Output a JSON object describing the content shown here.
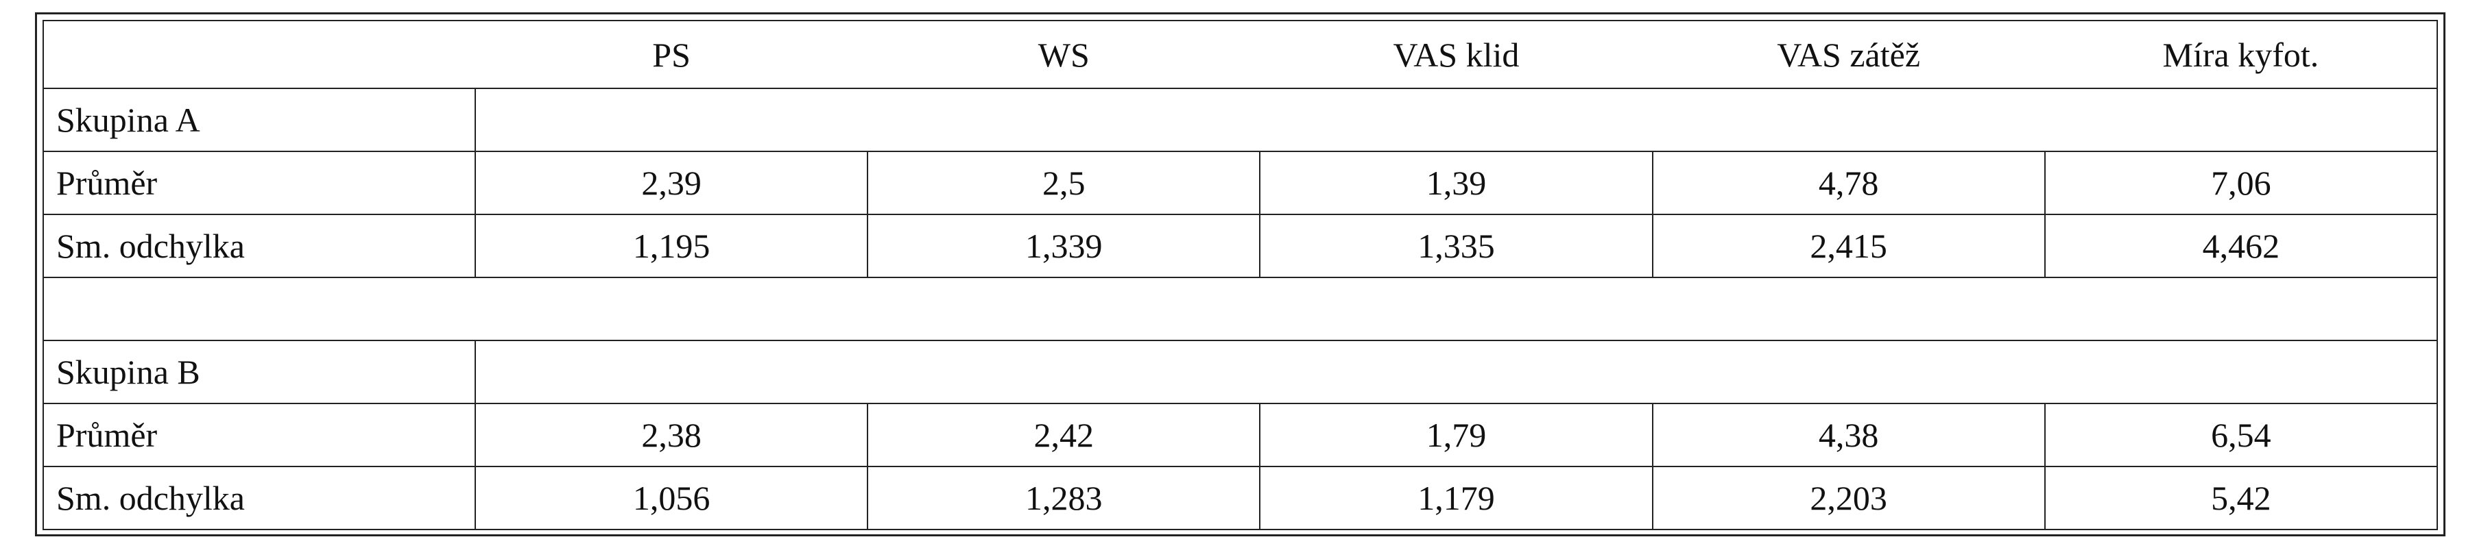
{
  "header": {
    "columns": [
      "PS",
      "WS",
      "VAS klid",
      "VAS zátěž",
      "Míra kyfot."
    ]
  },
  "groups": [
    {
      "title": "Skupina A",
      "rows": [
        {
          "label": "Průměr",
          "values": [
            "2,39",
            "2,5",
            "1,39",
            "4,78",
            "7,06"
          ]
        },
        {
          "label": "Sm. odchylka",
          "values": [
            "1,195",
            "1,339",
            "1,335",
            "2,415",
            "4,462"
          ]
        }
      ]
    },
    {
      "title": "Skupina B",
      "rows": [
        {
          "label": "Průměr",
          "values": [
            "2,38",
            "2,42",
            "1,79",
            "4,38",
            "6,54"
          ]
        },
        {
          "label": "Sm. odchylka",
          "values": [
            "1,056",
            "1,283",
            "1,179",
            "2,203",
            "5,42"
          ]
        }
      ]
    }
  ]
}
